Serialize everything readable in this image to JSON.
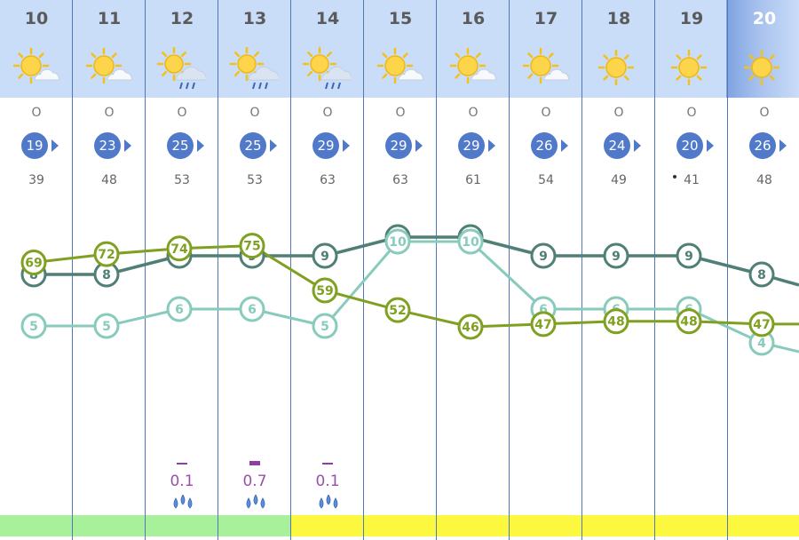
{
  "colors": {
    "header_bg": "#c9dcf8",
    "highlight_header": "#8daee6",
    "separator": "#4f79b8",
    "wind_badge": "#5079c9",
    "series_dark": "#4f7f75",
    "series_light": "#88cbbd",
    "series_green": "#7fa020",
    "precip_text": "#9b4fa8",
    "band_green": "#a8f09a",
    "band_yellow": "#fbf83f"
  },
  "days": [
    {
      "date": "10",
      "icon": "sun-cloud-icon",
      "dir": "O",
      "wind": "19",
      "gust": "39",
      "precip": "",
      "band": "green"
    },
    {
      "date": "11",
      "icon": "sun-cloud-icon",
      "dir": "O",
      "wind": "23",
      "gust": "48",
      "precip": "",
      "band": "green"
    },
    {
      "date": "12",
      "icon": "sun-rain-cloud-icon",
      "dir": "O",
      "wind": "25",
      "gust": "53",
      "precip": "0.1",
      "band": "green"
    },
    {
      "date": "13",
      "icon": "sun-rain-cloud-icon",
      "dir": "O",
      "wind": "25",
      "gust": "53",
      "precip": "0.7",
      "band": "green"
    },
    {
      "date": "14",
      "icon": "sun-rain-cloud-icon",
      "dir": "O",
      "wind": "29",
      "gust": "63",
      "precip": "0.1",
      "band": "yellow"
    },
    {
      "date": "15",
      "icon": "sun-cloud-icon",
      "dir": "O",
      "wind": "29",
      "gust": "63",
      "precip": "",
      "band": "yellow"
    },
    {
      "date": "16",
      "icon": "sun-cloud-icon",
      "dir": "O",
      "wind": "29",
      "gust": "61",
      "precip": "",
      "band": "yellow"
    },
    {
      "date": "17",
      "icon": "sun-cloud-icon",
      "dir": "O",
      "wind": "26",
      "gust": "54",
      "precip": "",
      "band": "yellow"
    },
    {
      "date": "18",
      "icon": "sun-icon",
      "dir": "O",
      "wind": "24",
      "gust": "49",
      "precip": "",
      "band": "yellow"
    },
    {
      "date": "19",
      "icon": "sun-icon",
      "dir": "O",
      "wind": "20",
      "gust": "41",
      "precip": "",
      "band": "yellow"
    },
    {
      "date": "20",
      "icon": "sun-icon",
      "dir": "O",
      "wind": "26",
      "gust": "48",
      "precip": "",
      "band": "yellow",
      "highlight": true
    }
  ],
  "chart_data": {
    "type": "line",
    "x": [
      "10",
      "11",
      "12",
      "13",
      "14",
      "15",
      "16",
      "17",
      "18",
      "19",
      "20"
    ],
    "series": [
      {
        "values": [
          8,
          8,
          9,
          9,
          9,
          10,
          10,
          9,
          9,
          9,
          8
        ],
        "color": "#4f7f75"
      },
      {
        "values": [
          5,
          5,
          6,
          6,
          5,
          10,
          10,
          6,
          6,
          6,
          4
        ],
        "color": "#88cbbd"
      },
      {
        "values": [
          69,
          72,
          74,
          75,
          59,
          52,
          46,
          47,
          48,
          48,
          47
        ],
        "color": "#7fa020"
      }
    ]
  }
}
